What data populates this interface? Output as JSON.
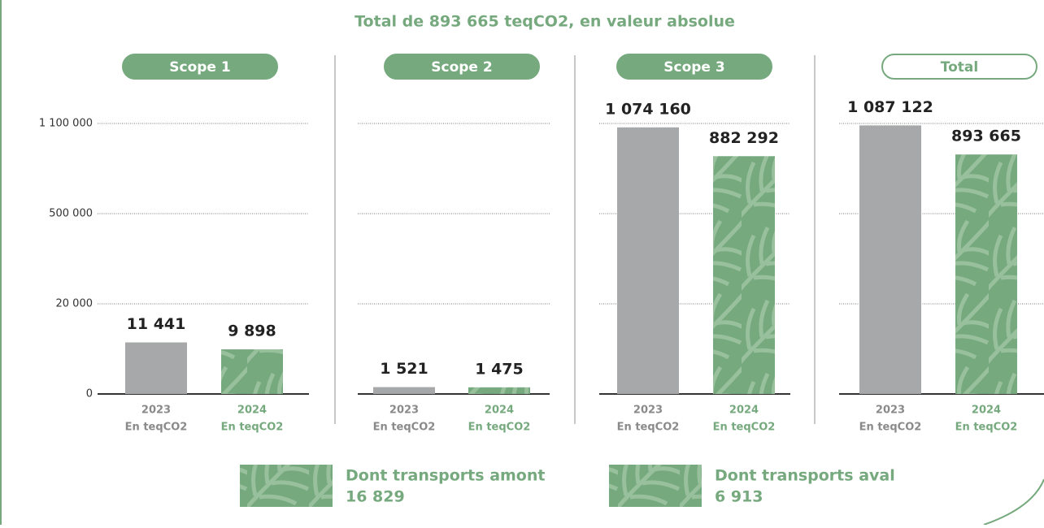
{
  "chart_data": {
    "type": "bar",
    "title": "Total de 893 665 teqCO2, en valeur absolue",
    "categories": [
      "Scope 1",
      "Scope 2",
      "Scope 3",
      "Total"
    ],
    "unit": "En teqCO2",
    "series": [
      {
        "name": "2023",
        "color": "#a7a8aa",
        "values": [
          11441,
          1521,
          1074160,
          1087122
        ],
        "value_labels": [
          "11 441",
          "1 521",
          "1 074 160",
          "1 087 122"
        ]
      },
      {
        "name": "2024",
        "color": "#76a97e",
        "values": [
          9898,
          1475,
          882292,
          893665
        ],
        "value_labels": [
          "9 898",
          "1 475",
          "882 292",
          "893 665"
        ]
      }
    ],
    "ylim": [
      0,
      1100000
    ],
    "yticks": [
      0,
      {
        "value": 20000,
        "label": "20 000"
      },
      {
        "value": 500000,
        "label": "500 000"
      },
      {
        "value": 1100000,
        "label": "1 100 000"
      }
    ],
    "grid": true,
    "annotations": [
      {
        "label": "Dont transports amont",
        "value": 16829,
        "value_label": "16 829"
      },
      {
        "label": "Dont transports aval",
        "value": 6913,
        "value_label": "6 913"
      }
    ]
  }
}
